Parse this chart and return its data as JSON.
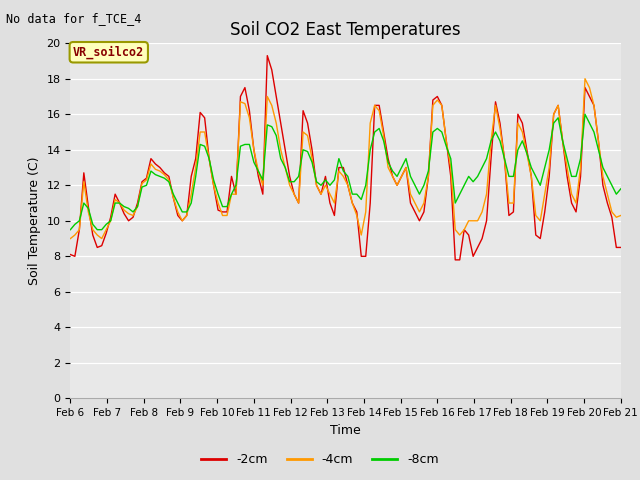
{
  "title": "Soil CO2 East Temperatures",
  "subtitle": "No data for f_TCE_4",
  "xlabel": "Time",
  "ylabel": "Soil Temperature (C)",
  "ylim": [
    0,
    20
  ],
  "yticks": [
    0,
    2,
    4,
    6,
    8,
    10,
    12,
    14,
    16,
    18,
    20
  ],
  "legend_label": "VR_soilco2",
  "series_labels": [
    "-2cm",
    "-4cm",
    "-8cm"
  ],
  "series_colors": [
    "#dd0000",
    "#ff9900",
    "#00cc00"
  ],
  "fig_facecolor": "#e0e0e0",
  "axes_facecolor": "#e8e8e8",
  "x_tick_labels": [
    "Feb 6",
    "Feb 7",
    "Feb 8",
    "Feb 9",
    "Feb 10",
    "Feb 11",
    "Feb 12",
    "Feb 13",
    "Feb 14",
    "Feb 15",
    "Feb 16",
    "Feb 17",
    "Feb 18",
    "Feb 19",
    "Feb 20",
    "Feb 21"
  ],
  "data_2cm": [
    8.1,
    8.0,
    9.5,
    12.7,
    10.8,
    9.2,
    8.5,
    8.6,
    9.3,
    10.2,
    11.5,
    11.0,
    10.4,
    10.0,
    10.2,
    11.0,
    12.2,
    12.4,
    13.5,
    13.2,
    13.0,
    12.7,
    12.5,
    11.3,
    10.3,
    10.0,
    10.3,
    12.5,
    13.5,
    16.1,
    15.8,
    13.5,
    12.0,
    10.6,
    10.5,
    10.5,
    12.5,
    11.5,
    17.0,
    17.5,
    16.2,
    14.0,
    12.5,
    11.5,
    19.3,
    18.5,
    17.0,
    15.5,
    14.0,
    12.5,
    11.5,
    11.0,
    16.2,
    15.5,
    14.0,
    12.0,
    11.5,
    12.5,
    11.0,
    10.3,
    13.0,
    13.0,
    12.0,
    11.0,
    10.5,
    8.0,
    8.0,
    11.0,
    16.5,
    16.5,
    15.0,
    13.5,
    12.5,
    12.0,
    12.5,
    13.0,
    11.0,
    10.5,
    10.0,
    10.5,
    12.5,
    16.8,
    17.0,
    16.5,
    14.5,
    12.5,
    7.8,
    7.8,
    9.5,
    9.2,
    8.0,
    8.5,
    9.0,
    10.0,
    13.5,
    16.7,
    15.5,
    13.5,
    10.3,
    10.5,
    16.0,
    15.5,
    14.0,
    12.5,
    9.2,
    9.0,
    10.5,
    12.5,
    16.0,
    16.5,
    14.5,
    12.5,
    11.0,
    10.5,
    12.5,
    17.5,
    17.0,
    16.5,
    14.5,
    12.0,
    11.0,
    10.2,
    8.5,
    8.5
  ],
  "data_4cm": [
    9.0,
    9.2,
    9.5,
    12.2,
    10.5,
    9.5,
    9.2,
    9.0,
    9.5,
    10.0,
    11.2,
    11.0,
    10.6,
    10.4,
    10.3,
    10.8,
    12.1,
    12.3,
    13.2,
    12.9,
    12.8,
    12.6,
    12.3,
    11.3,
    10.5,
    10.0,
    10.3,
    11.5,
    13.0,
    15.0,
    15.0,
    13.5,
    12.0,
    11.0,
    10.3,
    10.3,
    11.5,
    11.5,
    16.7,
    16.6,
    15.8,
    14.0,
    12.8,
    12.0,
    17.0,
    16.5,
    15.5,
    14.0,
    13.0,
    12.0,
    11.5,
    11.0,
    15.0,
    14.8,
    13.5,
    12.0,
    11.5,
    12.0,
    11.5,
    11.0,
    12.8,
    12.5,
    12.0,
    11.0,
    10.3,
    9.2,
    10.5,
    15.5,
    16.5,
    16.2,
    14.8,
    13.0,
    12.5,
    12.0,
    12.5,
    13.0,
    11.5,
    11.0,
    10.5,
    11.0,
    12.5,
    16.5,
    16.8,
    16.5,
    14.5,
    13.0,
    9.5,
    9.2,
    9.5,
    10.0,
    10.0,
    10.0,
    10.5,
    11.5,
    14.5,
    16.5,
    15.2,
    13.5,
    11.0,
    11.0,
    15.5,
    15.0,
    13.8,
    12.5,
    10.3,
    10.0,
    11.5,
    13.0,
    16.0,
    16.5,
    14.5,
    13.0,
    11.5,
    11.0,
    13.0,
    18.0,
    17.5,
    16.5,
    14.5,
    12.5,
    11.5,
    10.5,
    10.2,
    10.3
  ],
  "data_8cm": [
    9.5,
    9.8,
    10.0,
    11.0,
    10.7,
    9.8,
    9.5,
    9.5,
    9.8,
    10.0,
    11.0,
    11.0,
    10.8,
    10.7,
    10.5,
    10.8,
    11.9,
    12.0,
    12.8,
    12.6,
    12.5,
    12.4,
    12.2,
    11.5,
    11.0,
    10.5,
    10.5,
    11.0,
    12.5,
    14.3,
    14.2,
    13.5,
    12.3,
    11.5,
    10.8,
    10.8,
    11.5,
    12.0,
    14.2,
    14.3,
    14.3,
    13.3,
    12.8,
    12.3,
    15.4,
    15.3,
    14.8,
    13.5,
    13.0,
    12.2,
    12.2,
    12.5,
    14.0,
    13.9,
    13.3,
    12.2,
    12.0,
    12.3,
    12.0,
    12.3,
    13.5,
    12.8,
    12.5,
    11.5,
    11.5,
    11.2,
    12.0,
    14.0,
    15.0,
    15.2,
    14.5,
    13.3,
    12.8,
    12.5,
    13.0,
    13.5,
    12.5,
    12.0,
    11.5,
    12.0,
    12.8,
    15.0,
    15.2,
    15.0,
    14.2,
    13.5,
    11.0,
    11.5,
    12.0,
    12.5,
    12.2,
    12.5,
    13.0,
    13.5,
    14.5,
    15.0,
    14.5,
    13.5,
    12.5,
    12.5,
    14.0,
    14.5,
    13.8,
    13.0,
    12.5,
    12.0,
    13.0,
    14.0,
    15.5,
    15.8,
    14.5,
    13.5,
    12.5,
    12.5,
    13.5,
    16.0,
    15.5,
    15.0,
    14.0,
    13.0,
    12.5,
    12.0,
    11.5,
    11.8
  ]
}
